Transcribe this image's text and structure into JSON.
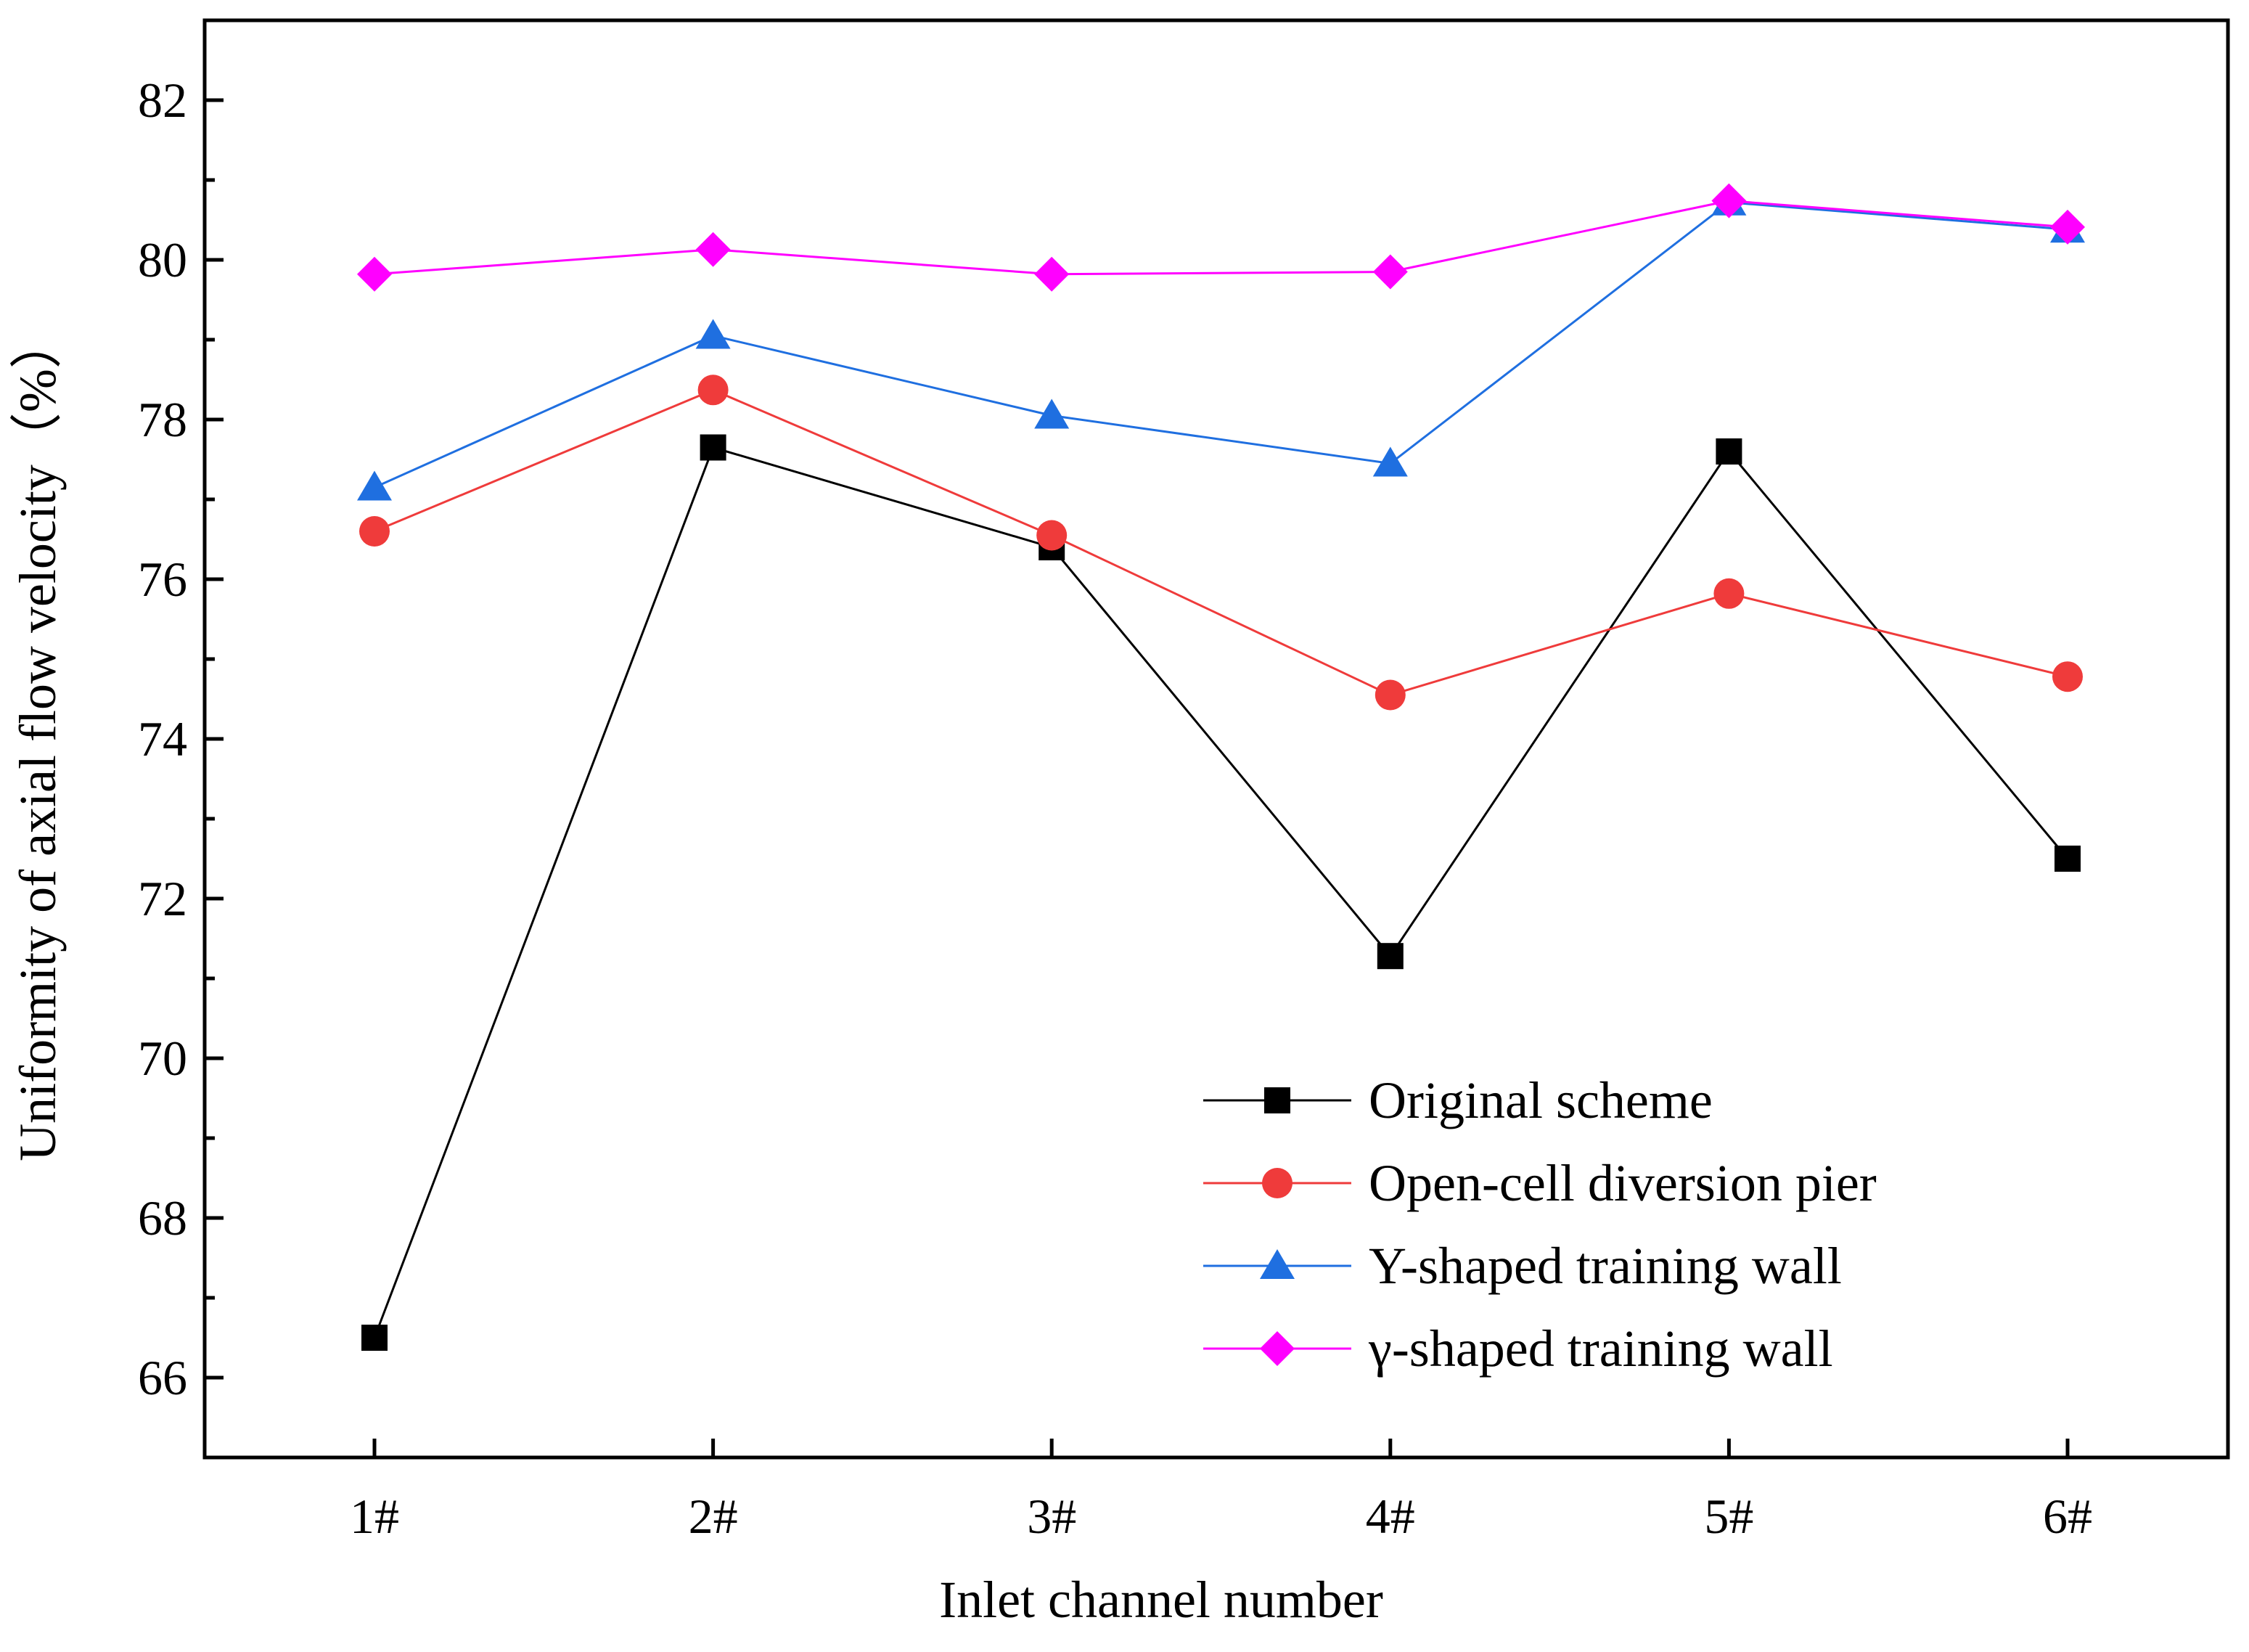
{
  "chart_data": {
    "type": "line",
    "title": "",
    "xlabel": "Inlet channel number",
    "ylabel": "Uniformity of axial flow velocity（%）",
    "categories": [
      "1#",
      "2#",
      "3#",
      "4#",
      "5#",
      "6#"
    ],
    "ylim": [
      65,
      83
    ],
    "yticks": [
      66,
      68,
      70,
      72,
      74,
      76,
      78,
      80,
      82
    ],
    "grid": false,
    "legend_position": "bottom-right",
    "series": [
      {
        "name": "Original scheme",
        "color": "#000000",
        "marker": "square",
        "values": [
          66.5,
          77.65,
          76.4,
          71.28,
          77.6,
          72.5
        ]
      },
      {
        "name": "Open-cell diversion pier",
        "color": "#ef3b3b",
        "marker": "circle",
        "values": [
          76.6,
          78.37,
          76.55,
          74.55,
          75.82,
          74.78
        ]
      },
      {
        "name": "Y-shaped training wall",
        "color": "#1f6fe0",
        "marker": "triangle",
        "values": [
          77.15,
          79.05,
          78.05,
          77.45,
          80.72,
          80.38
        ]
      },
      {
        "name": "γ-shaped training wall",
        "color": "#ff00ff",
        "marker": "diamond",
        "values": [
          79.82,
          80.13,
          79.82,
          79.85,
          80.74,
          80.41
        ]
      }
    ]
  }
}
